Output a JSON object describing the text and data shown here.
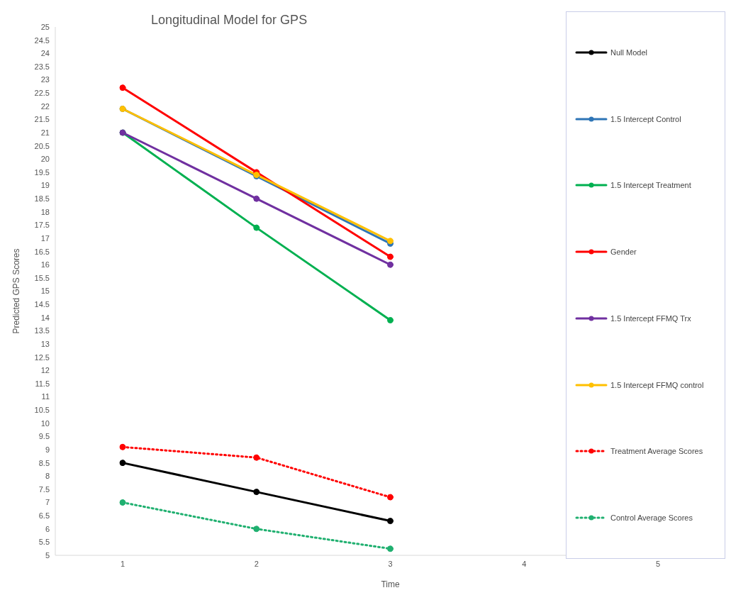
{
  "chart_data": {
    "type": "line",
    "title": "Longitudinal Model for GPS",
    "xlabel": "Time",
    "ylabel": "Predicted GPS Scores",
    "categories": [
      "1",
      "2",
      "3",
      "4",
      "5"
    ],
    "series": [
      {
        "name": "Null Model",
        "color": "#000000",
        "values": [
          8.5,
          7.4,
          6.3,
          null,
          null
        ]
      },
      {
        "name": "1.5 Intercept Control",
        "color": "#2e75b6",
        "values": [
          21.9,
          19.35,
          16.8,
          null,
          null
        ]
      },
      {
        "name": "1.5 Intercept Treatment",
        "color": "#00b050",
        "values": [
          21.0,
          17.4,
          13.9,
          null,
          null
        ]
      },
      {
        "name": "Gender",
        "color": "#ff0000",
        "values": [
          22.7,
          19.5,
          16.3,
          null,
          null
        ]
      },
      {
        "name": "1.5 Intercept FFMQ Trx",
        "color": "#7030a0",
        "values": [
          21.0,
          18.5,
          16.0,
          null,
          null
        ]
      },
      {
        "name": "1.5 Intercept FFMQ control",
        "color": "#ffc000",
        "values": [
          21.9,
          19.4,
          16.9,
          null,
          null
        ]
      },
      {
        "name": "Treatment Average Scores",
        "color": "#ff0000",
        "line_style": "dotted",
        "values": [
          9.1,
          8.7,
          7.2,
          null,
          null
        ]
      },
      {
        "name": "Control Average Scores",
        "color": "#20b070",
        "line_style": "dotted",
        "values": [
          7.0,
          6.0,
          5.25,
          null,
          null
        ]
      }
    ],
    "ylim": [
      5,
      25
    ],
    "yticks": [
      5,
      5.5,
      6,
      6.5,
      7,
      7.5,
      8,
      8.5,
      9,
      9.5,
      10,
      10.5,
      11,
      11.5,
      12,
      12.5,
      13,
      13.5,
      14,
      14.5,
      15,
      15.5,
      16,
      16.5,
      17,
      17.5,
      18,
      18.5,
      19,
      19.5,
      20,
      20.5,
      21,
      21.5,
      22,
      22.5,
      23,
      23.5,
      24,
      24.5,
      25
    ],
    "marker": "circle",
    "line_style": "solid",
    "legend": "right"
  }
}
